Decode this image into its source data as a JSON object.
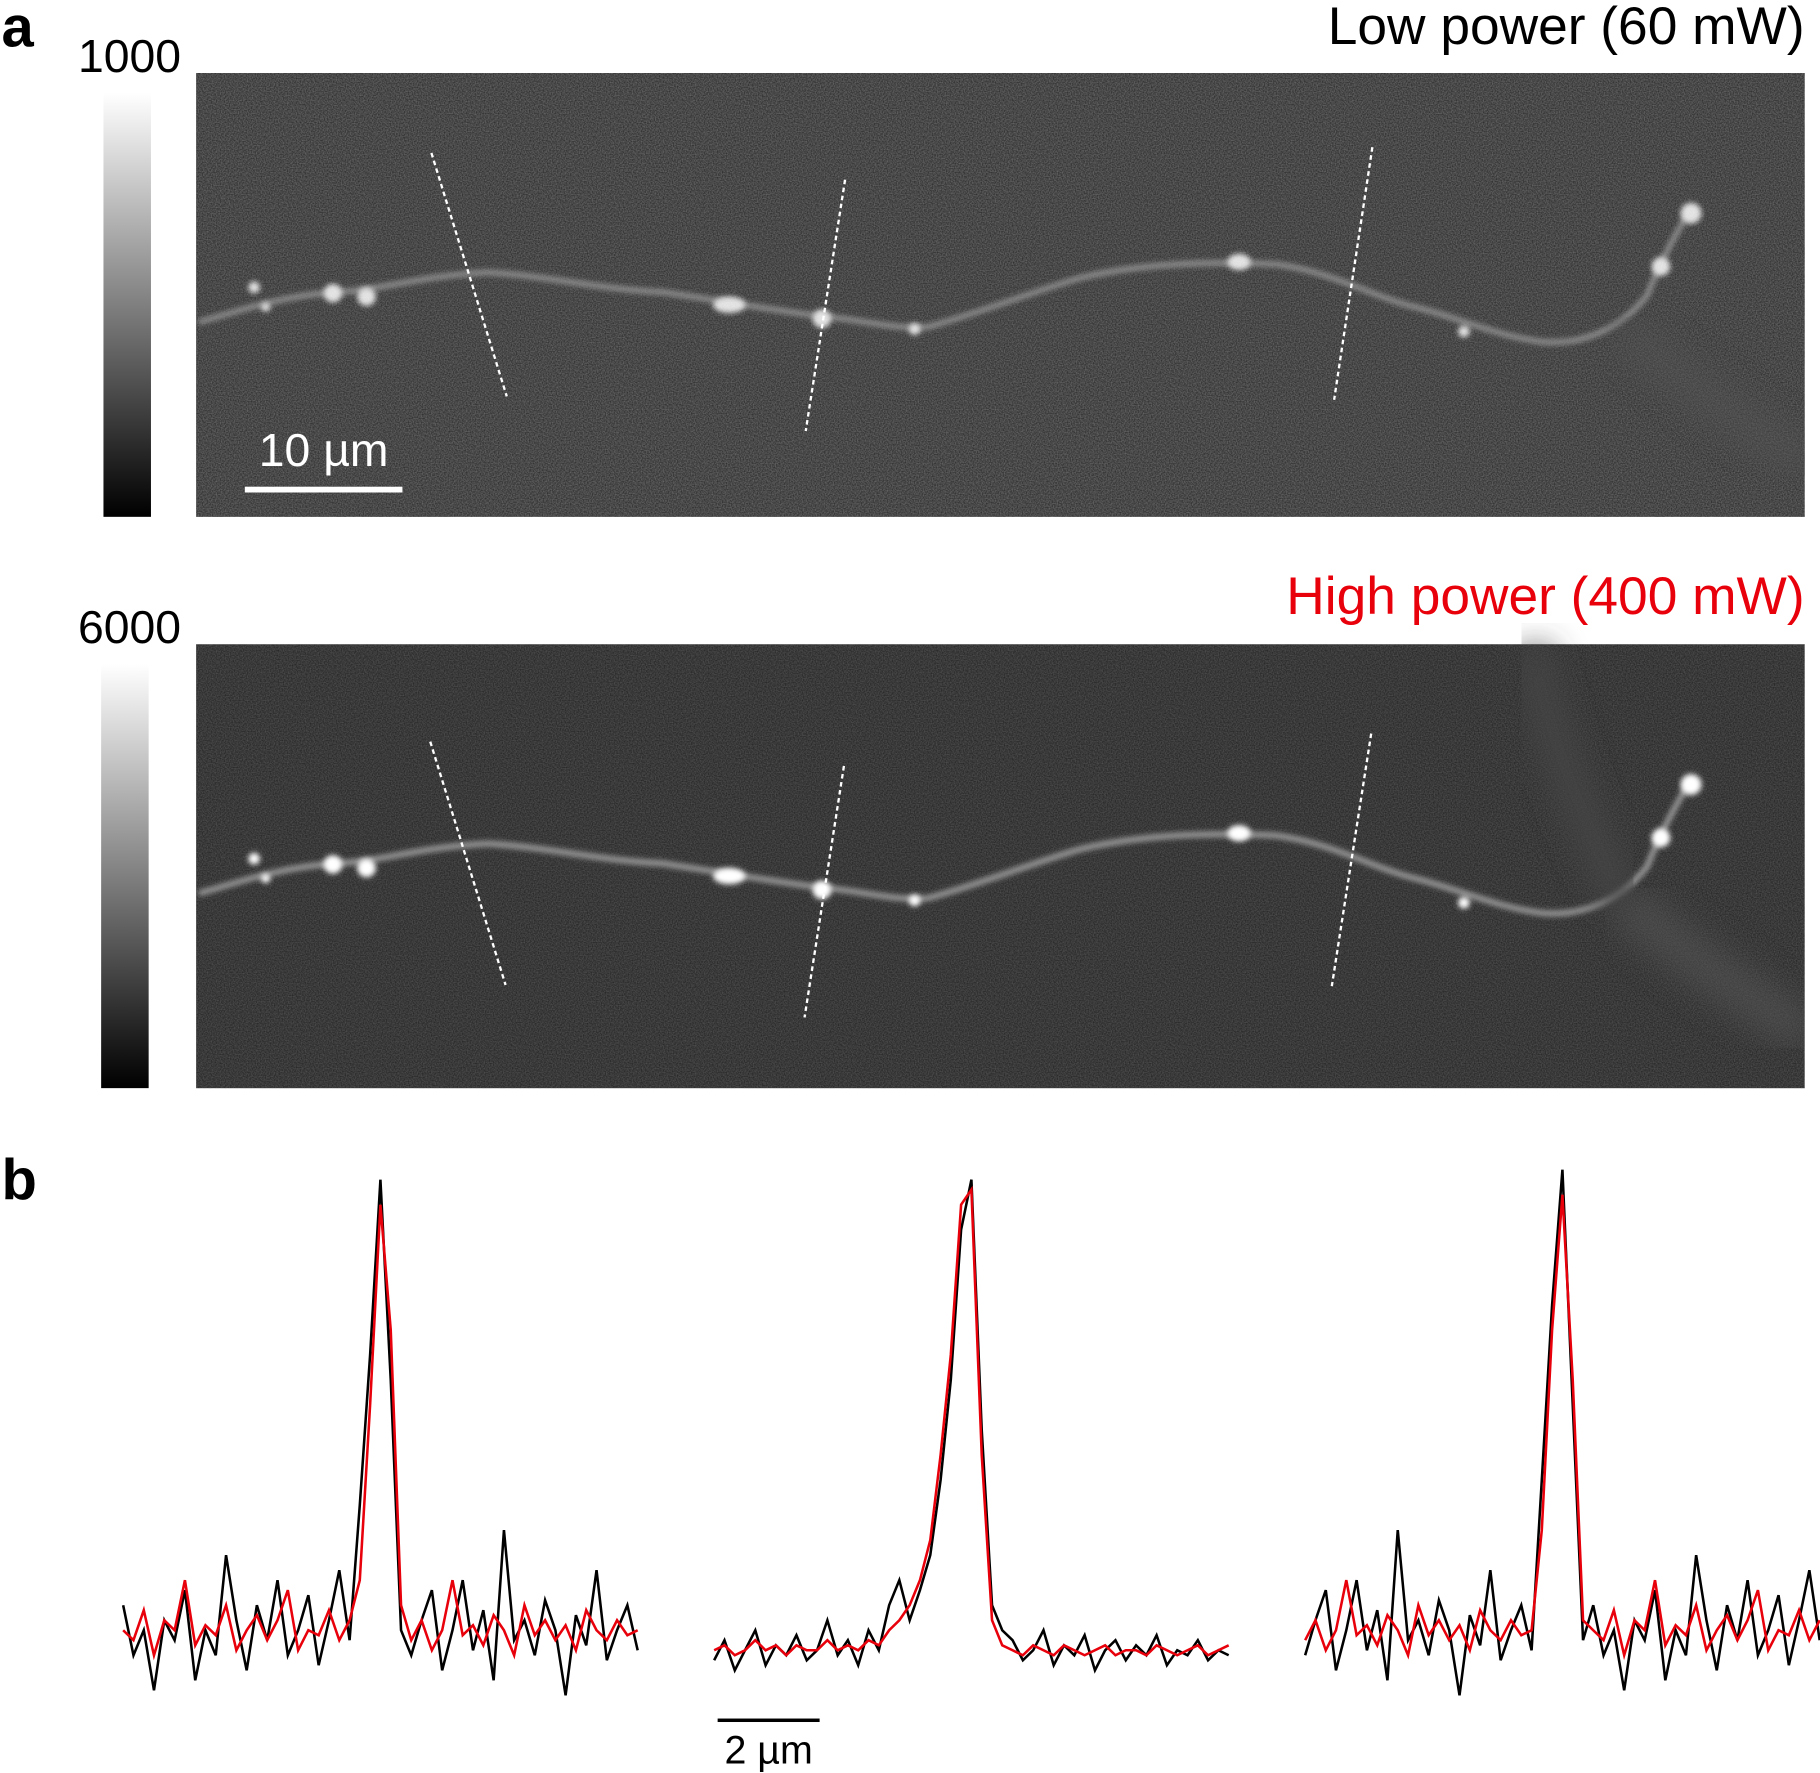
{
  "panel_a": {
    "label": "a",
    "low_power": {
      "title": "Low power (60 mW)",
      "colorbar_max": "1000",
      "scale_bar": "10 µm",
      "title_color": "#000000"
    },
    "high_power": {
      "title": "High power (400 mW)",
      "colorbar_max": "6000",
      "title_color": "#e8000b"
    }
  },
  "panel_b": {
    "label": "b",
    "scale_bar": "2 µm"
  },
  "chart_data": {
    "type": "line",
    "xlabel": "",
    "ylabel": "",
    "x_step_um": 0.2,
    "profiles": [
      {
        "series": [
          {
            "color": "#000000",
            "values": [
              0.15,
              0.05,
              0.1,
              -0.02,
              0.12,
              0.08,
              0.18,
              0.0,
              0.1,
              0.05,
              0.25,
              0.12,
              0.02,
              0.15,
              0.08,
              0.2,
              0.05,
              0.1,
              0.17,
              0.03,
              0.12,
              0.22,
              0.08,
              0.35,
              0.65,
              1.0,
              0.6,
              0.1,
              0.05,
              0.12,
              0.18,
              0.02,
              0.1,
              0.2,
              0.06,
              0.14,
              0.0,
              0.3,
              0.08,
              0.12,
              0.05,
              0.16,
              0.1,
              -0.03,
              0.13,
              0.07,
              0.22,
              0.04,
              0.1,
              0.15,
              0.06
            ]
          },
          {
            "color": "#e8000b",
            "values": [
              0.1,
              0.08,
              0.14,
              0.05,
              0.12,
              0.1,
              0.2,
              0.07,
              0.11,
              0.09,
              0.15,
              0.06,
              0.1,
              0.13,
              0.08,
              0.12,
              0.18,
              0.06,
              0.1,
              0.09,
              0.14,
              0.08,
              0.12,
              0.2,
              0.55,
              0.95,
              0.7,
              0.15,
              0.08,
              0.12,
              0.06,
              0.1,
              0.2,
              0.09,
              0.11,
              0.07,
              0.13,
              0.1,
              0.05,
              0.15,
              0.09,
              0.12,
              0.08,
              0.11,
              0.06,
              0.14,
              0.1,
              0.08,
              0.12,
              0.09,
              0.1
            ]
          }
        ]
      },
      {
        "series": [
          {
            "color": "#000000",
            "values": [
              0.04,
              0.08,
              0.02,
              0.06,
              0.1,
              0.03,
              0.07,
              0.05,
              0.09,
              0.04,
              0.06,
              0.12,
              0.05,
              0.08,
              0.03,
              0.1,
              0.06,
              0.15,
              0.2,
              0.12,
              0.18,
              0.25,
              0.4,
              0.6,
              0.9,
              1.0,
              0.5,
              0.15,
              0.1,
              0.08,
              0.04,
              0.06,
              0.1,
              0.03,
              0.07,
              0.05,
              0.09,
              0.02,
              0.06,
              0.08,
              0.04,
              0.07,
              0.05,
              0.09,
              0.03,
              0.06,
              0.05,
              0.08,
              0.04,
              0.06,
              0.05
            ]
          },
          {
            "color": "#e8000b",
            "values": [
              0.06,
              0.07,
              0.05,
              0.06,
              0.08,
              0.06,
              0.07,
              0.05,
              0.07,
              0.06,
              0.06,
              0.08,
              0.06,
              0.07,
              0.06,
              0.08,
              0.07,
              0.1,
              0.12,
              0.15,
              0.2,
              0.28,
              0.45,
              0.65,
              0.95,
              0.98,
              0.45,
              0.12,
              0.07,
              0.06,
              0.05,
              0.07,
              0.06,
              0.05,
              0.07,
              0.06,
              0.05,
              0.06,
              0.07,
              0.05,
              0.06,
              0.06,
              0.05,
              0.07,
              0.06,
              0.05,
              0.06,
              0.07,
              0.05,
              0.06,
              0.07
            ]
          }
        ]
      },
      {
        "series": [
          {
            "color": "#000000",
            "values": [
              0.05,
              0.12,
              0.18,
              0.02,
              0.1,
              0.2,
              0.06,
              0.14,
              0.0,
              0.3,
              0.08,
              0.12,
              0.05,
              0.16,
              0.1,
              -0.03,
              0.13,
              0.07,
              0.22,
              0.04,
              0.1,
              0.15,
              0.06,
              0.4,
              0.75,
              1.02,
              0.55,
              0.08,
              0.15,
              0.05,
              0.1,
              -0.02,
              0.12,
              0.08,
              0.18,
              0.0,
              0.1,
              0.05,
              0.25,
              0.12,
              0.02,
              0.15,
              0.08,
              0.2,
              0.05,
              0.1,
              0.17,
              0.03,
              0.12,
              0.22,
              0.08
            ]
          },
          {
            "color": "#e8000b",
            "values": [
              0.08,
              0.12,
              0.06,
              0.1,
              0.2,
              0.09,
              0.11,
              0.07,
              0.13,
              0.1,
              0.05,
              0.15,
              0.09,
              0.12,
              0.08,
              0.11,
              0.06,
              0.14,
              0.1,
              0.08,
              0.12,
              0.09,
              0.1,
              0.3,
              0.7,
              0.97,
              0.6,
              0.12,
              0.1,
              0.08,
              0.14,
              0.05,
              0.12,
              0.1,
              0.2,
              0.07,
              0.11,
              0.09,
              0.15,
              0.06,
              0.1,
              0.13,
              0.08,
              0.12,
              0.18,
              0.06,
              0.1,
              0.09,
              0.14,
              0.08,
              0.12
            ]
          }
        ]
      }
    ]
  }
}
